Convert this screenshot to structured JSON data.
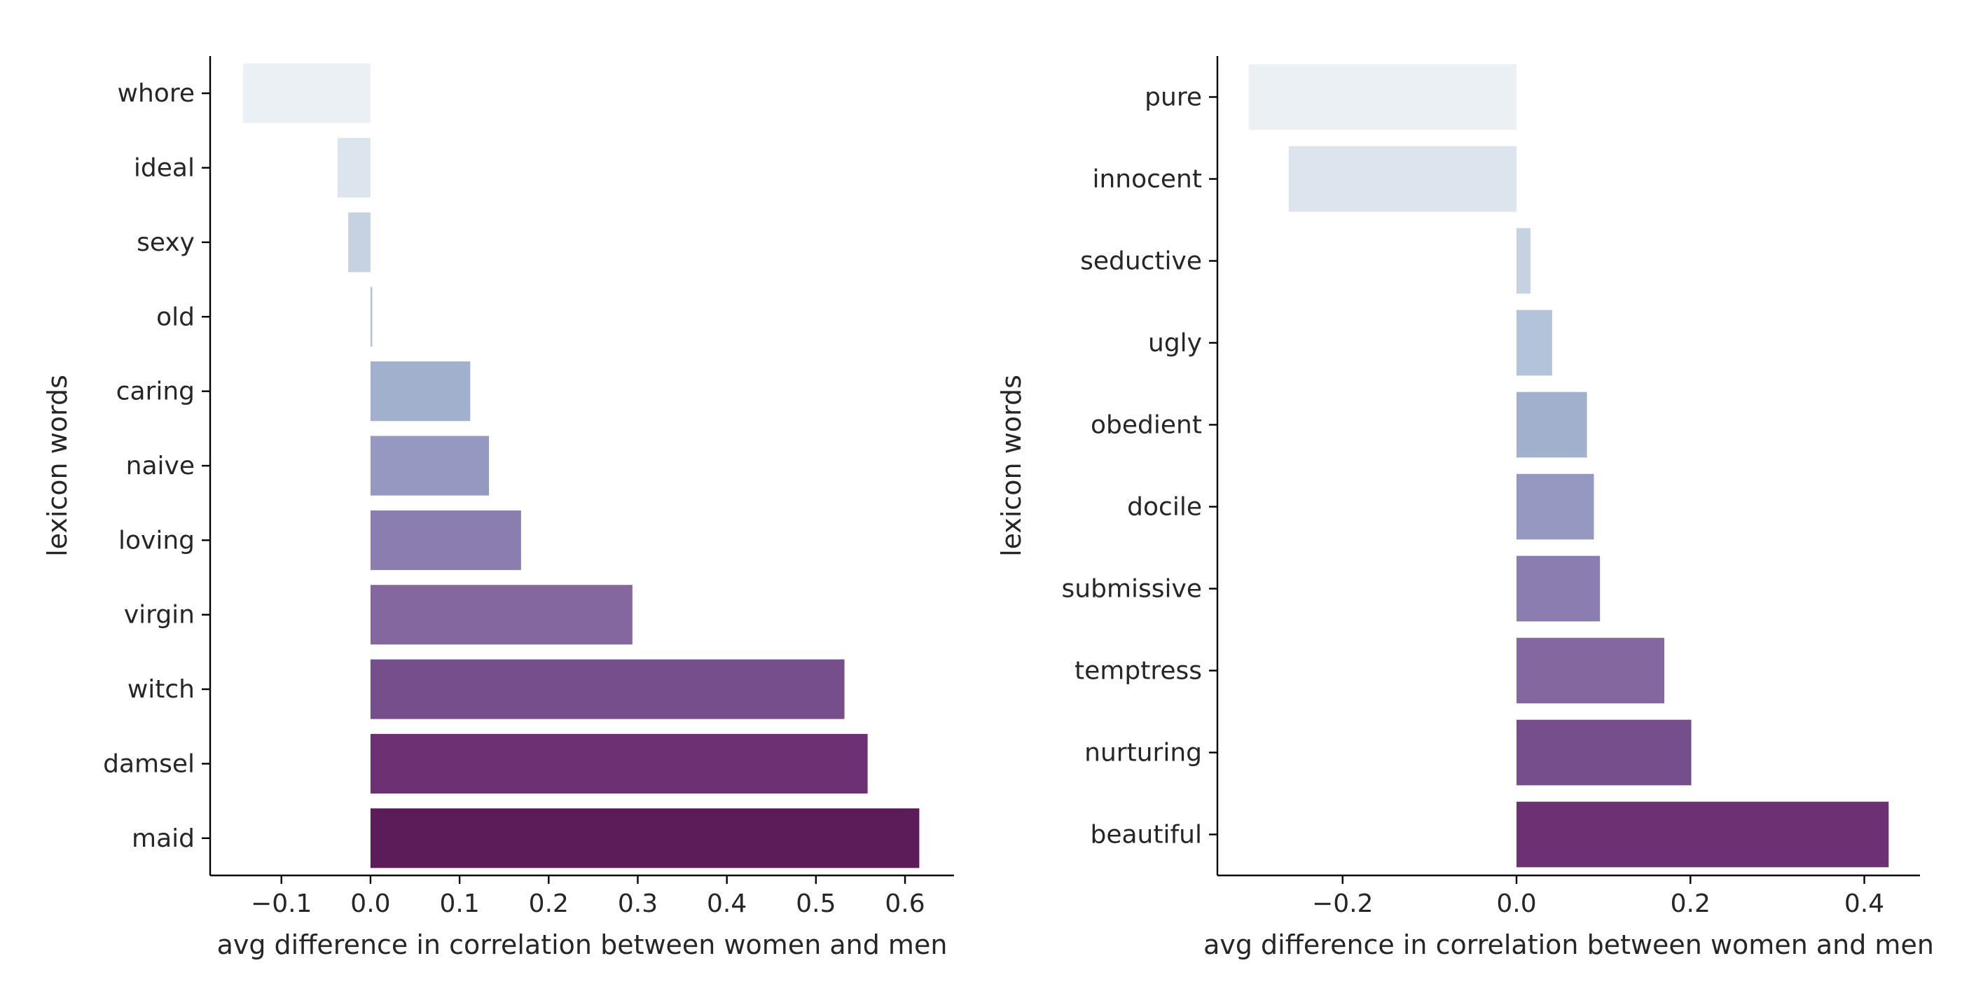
{
  "chart_data": [
    {
      "type": "bar",
      "orientation": "horizontal",
      "ylabel": "lexicon words",
      "xlabel": "avg difference in correlation between women and men",
      "xlim": [
        -0.18,
        0.655
      ],
      "xticks": [
        -0.1,
        0.0,
        0.1,
        0.2,
        0.3,
        0.4,
        0.5,
        0.6
      ],
      "xtick_labels": [
        "−0.1",
        "0.0",
        "0.1",
        "0.2",
        "0.3",
        "0.4",
        "0.5",
        "0.6"
      ],
      "categories": [
        "whore",
        "ideal",
        "sexy",
        "old",
        "caring",
        "naive",
        "loving",
        "virgin",
        "witch",
        "damsel",
        "maid"
      ],
      "values": [
        -0.143,
        -0.037,
        -0.025,
        0.002,
        0.112,
        0.133,
        0.169,
        0.294,
        0.532,
        0.558,
        0.616
      ],
      "colors": [
        "#ebf0f5",
        "#dce4ed",
        "#c6d2e2",
        "#b3c3da",
        "#a1b1cd",
        "#9598c0",
        "#8c7db1",
        "#85679f",
        "#774e8c",
        "#6d3073",
        "#5c1c5a"
      ],
      "grid": false
    },
    {
      "type": "bar",
      "orientation": "horizontal",
      "ylabel": "lexicon words",
      "xlabel": "avg difference in correlation between women and men",
      "xlim": [
        -0.344,
        0.464
      ],
      "xticks": [
        -0.2,
        0.0,
        0.2,
        0.4
      ],
      "xtick_labels": [
        "−0.2",
        "0.0",
        "0.2",
        "0.4"
      ],
      "categories": [
        "pure",
        "innocent",
        "seductive",
        "ugly",
        "obedient",
        "docile",
        "submissive",
        "temptress",
        "nurturing",
        "beautiful"
      ],
      "values": [
        -0.308,
        -0.262,
        0.016,
        0.041,
        0.081,
        0.089,
        0.096,
        0.17,
        0.201,
        0.428
      ],
      "colors": [
        "#ebf0f5",
        "#dce4ed",
        "#c6d2e2",
        "#b3c3da",
        "#a1b1cd",
        "#9598c0",
        "#8c7db1",
        "#85679f",
        "#774e8c",
        "#6d3073"
      ],
      "grid": false
    }
  ]
}
